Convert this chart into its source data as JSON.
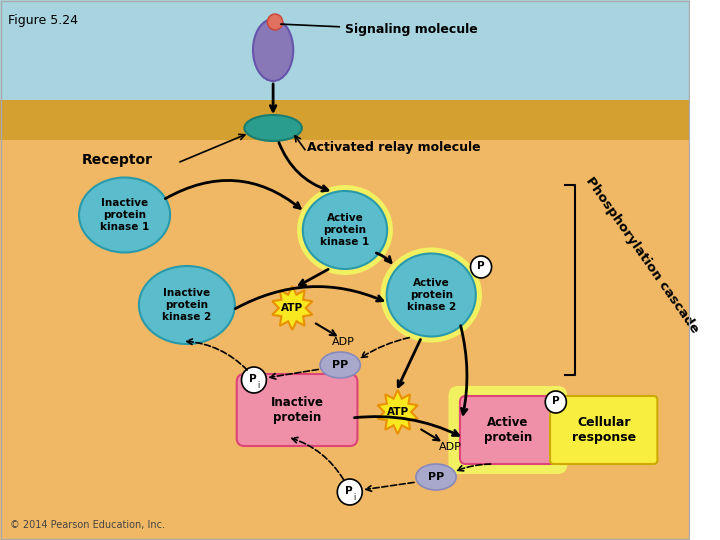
{
  "title": "Figure 5.24",
  "signaling_molecule_label": "Signaling molecule",
  "receptor_label": "Receptor",
  "activated_relay_label": "Activated relay molecule",
  "inactive_pk1_label": "Inactive\nprotein\nkinase 1",
  "active_pk1_label": "Active\nprotein\nkinase 1",
  "inactive_pk2_label": "Inactive\nprotein\nkinase 2",
  "active_pk2_label": "Active\nprotein\nkinase 2",
  "inactive_protein_label": "Inactive\nprotein",
  "active_protein_label": "Active\nprotein",
  "atp_label": "ATP",
  "adp_label": "ADP",
  "pp_label": "PP",
  "pi_label": "P",
  "p_label": "P",
  "cellular_response_label": "Cellular\nresponse",
  "phosphorylation_label": "Phosphorylation cascade",
  "copyright": "© 2014 Pearson Education, Inc.",
  "sky_color": "#a8d4e0",
  "sand_color": "#d4a030",
  "interior_color": "#f0b864",
  "white_color": "#ffffff",
  "teal_dark": "#2a9d8f",
  "teal_light": "#5bbccc",
  "yellow_green": "#d4e044",
  "yellow_glow": "#f0f060",
  "pink_color": "#f090a8",
  "yellow_bright": "#f8e820",
  "orange_burst": "#e89000",
  "purple_mol": "#8878b8",
  "pink_mol": "#e07060",
  "lavender": "#a8a8cc",
  "yellow_box": "#f8ee40",
  "gray_border": "#888888"
}
